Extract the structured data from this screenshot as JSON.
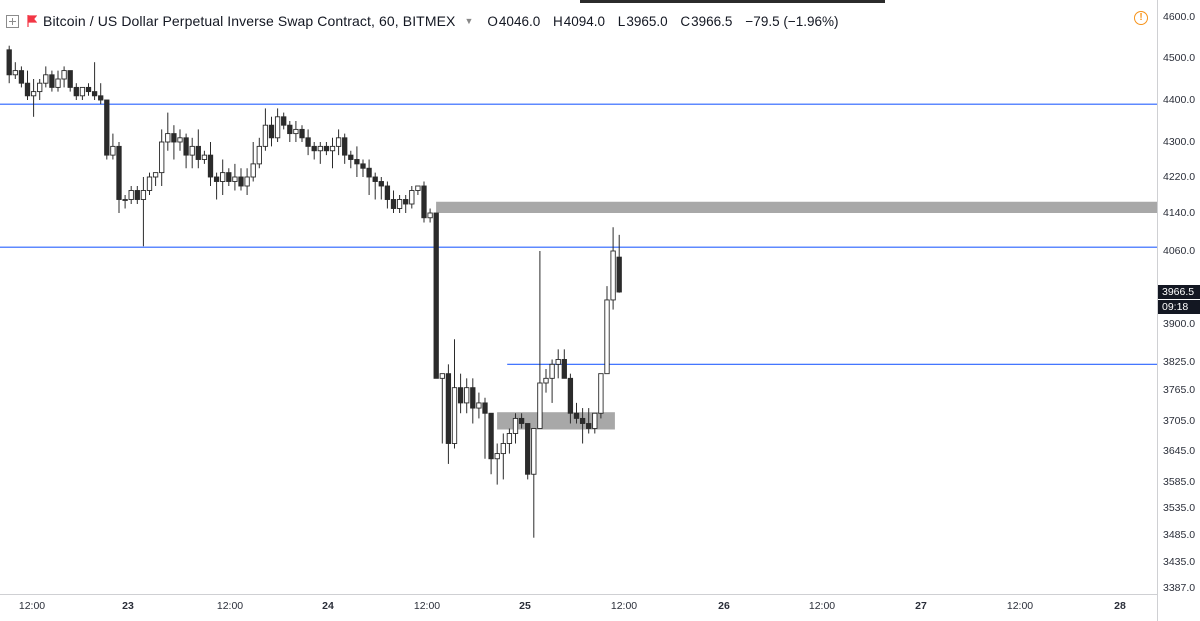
{
  "header": {
    "symbol": "Bitcoin / US Dollar Perpetual Inverse Swap Contract, 60, BITMEX",
    "o_label": "O",
    "o_value": "4046.0",
    "h_label": "H",
    "h_value": "4094.0",
    "l_label": "L",
    "l_value": "3965.0",
    "c_label": "C",
    "c_value": "3966.5",
    "change": "−79.5 (−1.96%)"
  },
  "icons": {
    "expand": "expand-icon",
    "flag": "flag-icon",
    "dropdown": "chevron-down-icon",
    "alert": "alert-icon"
  },
  "alert_glyph": "!",
  "colors": {
    "up_body": "#ffffff",
    "down_body": "#2b2b2b",
    "wick": "#2b2b2b",
    "hline": "#2962ff",
    "zone": "#a8a8a8",
    "badge": "#131722",
    "alert": "#f7931a"
  },
  "price_axis": {
    "ticks": [
      "4600.0",
      "4500.0",
      "4400.0",
      "4300.0",
      "4220.0",
      "4140.0",
      "4060.0",
      "3900.0",
      "3825.0",
      "3765.0",
      "3705.0",
      "3645.0",
      "3585.0",
      "3535.0",
      "3485.0",
      "3435.0",
      "3387.0"
    ],
    "current_price": "3966.5",
    "countdown": "09:18"
  },
  "time_axis": {
    "ticks": [
      {
        "label": "12:00",
        "day": false
      },
      {
        "label": "23",
        "day": true
      },
      {
        "label": "12:00",
        "day": false
      },
      {
        "label": "24",
        "day": true
      },
      {
        "label": "12:00",
        "day": false
      },
      {
        "label": "25",
        "day": true
      },
      {
        "label": "12:00",
        "day": false
      },
      {
        "label": "26",
        "day": true
      },
      {
        "label": "12:00",
        "day": false
      },
      {
        "label": "27",
        "day": true
      },
      {
        "label": "12:00",
        "day": false
      },
      {
        "label": "28",
        "day": true
      }
    ]
  },
  "chart_data": {
    "type": "candlestick",
    "exchange": "BITMEX",
    "interval": "60",
    "horizontal_lines": [
      4390,
      4068,
      3820
    ],
    "zones": [
      {
        "price_top": 4165,
        "price_bottom": 4140,
        "from_bar": 71,
        "extends_right": true
      },
      {
        "price_top": 3722,
        "price_bottom": 3688,
        "from_bar": 81,
        "to_bar": 99
      }
    ],
    "series": [
      {
        "ohlc": [
          [
            4520,
            4530,
            4440,
            4460
          ],
          [
            4460,
            4490,
            4450,
            4470
          ],
          [
            4470,
            4480,
            4430,
            4440
          ],
          [
            4440,
            4470,
            4400,
            4410
          ],
          [
            4410,
            4450,
            4360,
            4420
          ],
          [
            4420,
            4450,
            4400,
            4440
          ],
          [
            4440,
            4480,
            4430,
            4460
          ],
          [
            4460,
            4470,
            4420,
            4430
          ],
          [
            4430,
            4470,
            4420,
            4450
          ],
          [
            4450,
            4480,
            4430,
            4470
          ],
          [
            4470,
            4470,
            4420,
            4430
          ],
          [
            4430,
            4440,
            4400,
            4410
          ],
          [
            4410,
            4430,
            4400,
            4430
          ],
          [
            4430,
            4440,
            4410,
            4420
          ],
          [
            4420,
            4490,
            4400,
            4410
          ],
          [
            4410,
            4440,
            4390,
            4400
          ],
          [
            4400,
            4400,
            4260,
            4270
          ],
          [
            4270,
            4320,
            4260,
            4290
          ],
          [
            4290,
            4300,
            4140,
            4170
          ],
          [
            4170,
            4180,
            4150,
            4170
          ],
          [
            4170,
            4200,
            4160,
            4190
          ],
          [
            4190,
            4200,
            4160,
            4170
          ],
          [
            4170,
            4220,
            4070,
            4190
          ],
          [
            4190,
            4230,
            4180,
            4220
          ],
          [
            4220,
            4230,
            4200,
            4230
          ],
          [
            4230,
            4330,
            4200,
            4300
          ],
          [
            4300,
            4370,
            4280,
            4320
          ],
          [
            4320,
            4340,
            4260,
            4300
          ],
          [
            4300,
            4330,
            4280,
            4310
          ],
          [
            4310,
            4320,
            4240,
            4270
          ],
          [
            4270,
            4310,
            4240,
            4290
          ],
          [
            4290,
            4330,
            4240,
            4260
          ],
          [
            4260,
            4280,
            4250,
            4270
          ],
          [
            4270,
            4300,
            4200,
            4220
          ],
          [
            4220,
            4230,
            4170,
            4210
          ],
          [
            4210,
            4260,
            4180,
            4230
          ],
          [
            4230,
            4240,
            4200,
            4210
          ],
          [
            4210,
            4250,
            4190,
            4220
          ],
          [
            4220,
            4240,
            4190,
            4200
          ],
          [
            4200,
            4240,
            4180,
            4220
          ],
          [
            4220,
            4300,
            4210,
            4250
          ],
          [
            4250,
            4310,
            4240,
            4290
          ],
          [
            4290,
            4380,
            4280,
            4340
          ],
          [
            4340,
            4360,
            4290,
            4310
          ],
          [
            4310,
            4380,
            4300,
            4360
          ],
          [
            4360,
            4370,
            4330,
            4340
          ],
          [
            4340,
            4350,
            4300,
            4320
          ],
          [
            4320,
            4350,
            4300,
            4330
          ],
          [
            4330,
            4340,
            4300,
            4310
          ],
          [
            4310,
            4330,
            4270,
            4290
          ],
          [
            4290,
            4300,
            4260,
            4280
          ],
          [
            4280,
            4300,
            4250,
            4290
          ],
          [
            4290,
            4300,
            4270,
            4280
          ],
          [
            4280,
            4310,
            4240,
            4290
          ],
          [
            4290,
            4330,
            4270,
            4310
          ],
          [
            4310,
            4320,
            4250,
            4270
          ],
          [
            4270,
            4280,
            4240,
            4260
          ],
          [
            4260,
            4290,
            4220,
            4250
          ],
          [
            4250,
            4260,
            4220,
            4240
          ],
          [
            4240,
            4260,
            4180,
            4220
          ],
          [
            4220,
            4230,
            4170,
            4210
          ],
          [
            4210,
            4220,
            4170,
            4200
          ],
          [
            4200,
            4210,
            4150,
            4170
          ],
          [
            4170,
            4190,
            4140,
            4150
          ],
          [
            4150,
            4180,
            4140,
            4170
          ],
          [
            4170,
            4180,
            4140,
            4160
          ],
          [
            4160,
            4200,
            4150,
            4190
          ],
          [
            4190,
            4200,
            4180,
            4200
          ],
          [
            4200,
            4210,
            4120,
            4130
          ],
          [
            4130,
            4150,
            4120,
            4140
          ],
          [
            4140,
            4140,
            3790,
            3790
          ],
          [
            3790,
            3790,
            3660,
            3800
          ],
          [
            3800,
            3820,
            3620,
            3660
          ],
          [
            3660,
            3870,
            3650,
            3770
          ],
          [
            3770,
            3800,
            3720,
            3740
          ],
          [
            3740,
            3790,
            3720,
            3770
          ],
          [
            3770,
            3790,
            3700,
            3730
          ],
          [
            3730,
            3760,
            3710,
            3740
          ],
          [
            3740,
            3750,
            3630,
            3720
          ],
          [
            3720,
            3720,
            3600,
            3630
          ],
          [
            3630,
            3660,
            3580,
            3640
          ],
          [
            3640,
            3680,
            3590,
            3660
          ],
          [
            3660,
            3690,
            3640,
            3680
          ],
          [
            3680,
            3720,
            3660,
            3710
          ],
          [
            3710,
            3720,
            3690,
            3700
          ],
          [
            3700,
            3700,
            3590,
            3600
          ],
          [
            3600,
            3690,
            3480,
            3690
          ],
          [
            3690,
            4060,
            3690,
            3780
          ],
          [
            3780,
            3810,
            3760,
            3790
          ],
          [
            3790,
            3830,
            3740,
            3820
          ],
          [
            3820,
            3850,
            3790,
            3830
          ],
          [
            3830,
            3850,
            3790,
            3790
          ],
          [
            3790,
            3800,
            3700,
            3720
          ],
          [
            3720,
            3740,
            3700,
            3710
          ],
          [
            3710,
            3730,
            3660,
            3700
          ],
          [
            3700,
            3730,
            3680,
            3690
          ],
          [
            3690,
            3720,
            3680,
            3720
          ],
          [
            3720,
            3800,
            3710,
            3800
          ],
          [
            3800,
            3980,
            3800,
            3950
          ],
          [
            3950,
            4110,
            3930,
            4060
          ],
          [
            4046,
            4094,
            3965,
            3966.5
          ]
        ]
      }
    ],
    "ylim": [
      3387,
      4620
    ]
  }
}
